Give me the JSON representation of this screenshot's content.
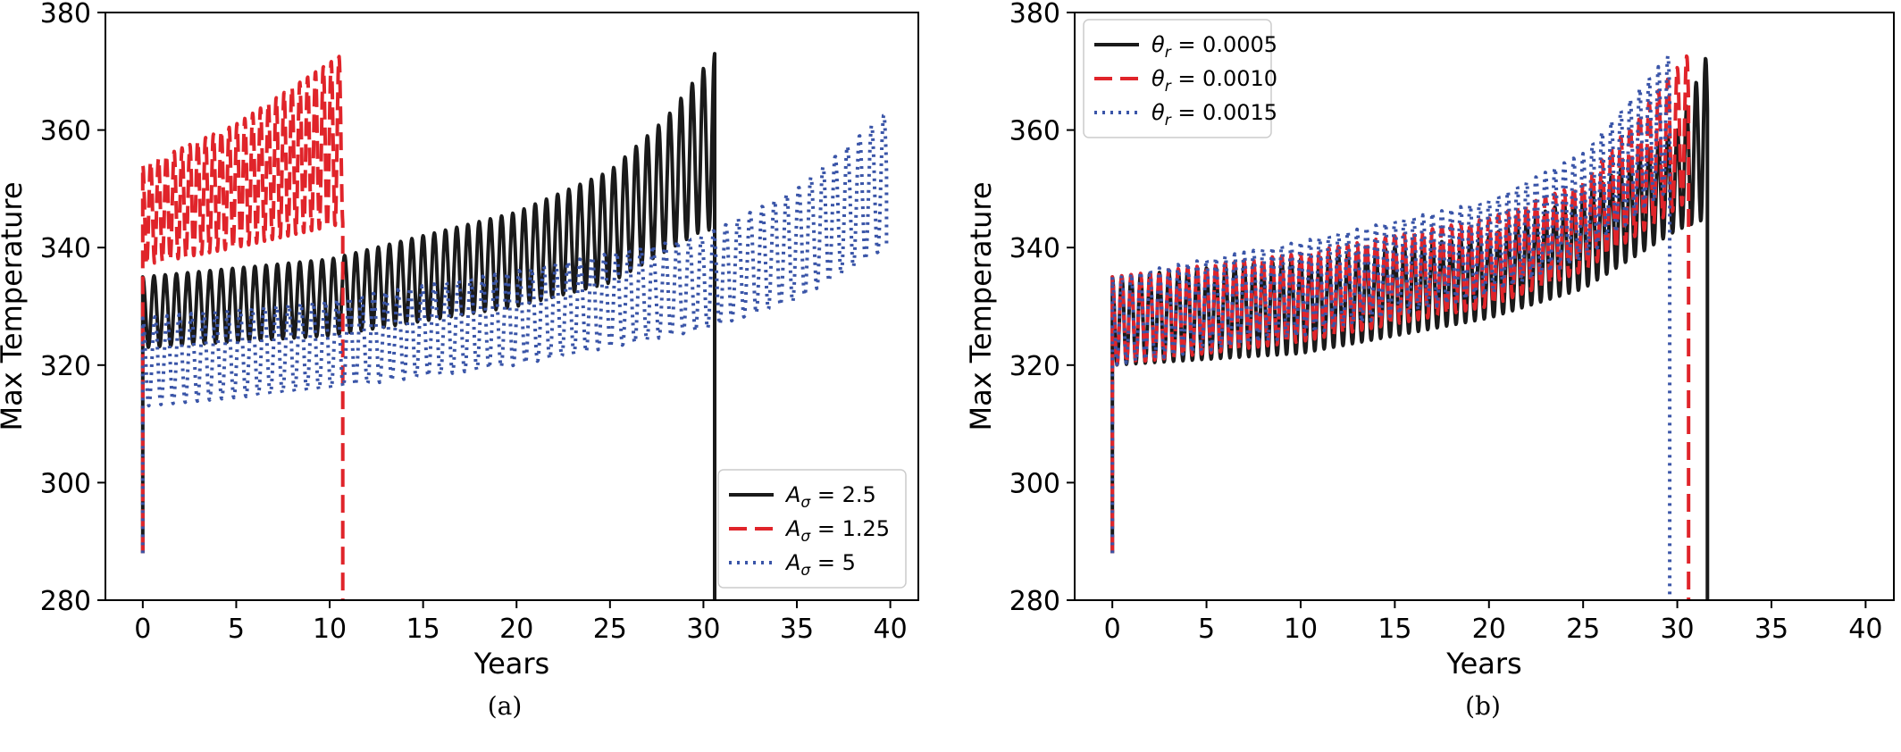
{
  "chart_data": [
    {
      "type": "line",
      "caption": "(a)",
      "xlabel": "Years",
      "ylabel": "Max Temperature",
      "xlim": [
        -2,
        41.5
      ],
      "ylim": [
        280,
        380
      ],
      "xticks": [
        "0",
        "5",
        "10",
        "15",
        "20",
        "25",
        "30",
        "35",
        "40"
      ],
      "yticks": [
        "280",
        "300",
        "320",
        "340",
        "360",
        "380"
      ],
      "legend_position": "lower-right",
      "series": [
        {
          "name": "A_σ = 2.5",
          "legend": {
            "base": "A",
            "sub": "σ",
            "rest": " = 2.5"
          },
          "color": "#1a1a1a",
          "style": "solid",
          "end_year": 30.6,
          "drop_to": 280,
          "period": 0.6,
          "lower": [
            [
              0,
              323
            ],
            [
              10,
              325
            ],
            [
              20,
              330
            ],
            [
              25,
              334
            ],
            [
              30,
              343
            ]
          ],
          "upper": [
            [
              0,
              335
            ],
            [
              10,
              338
            ],
            [
              15,
              342
            ],
            [
              20,
              346
            ],
            [
              25,
              353
            ],
            [
              28,
              362
            ],
            [
              30.6,
              373
            ]
          ]
        },
        {
          "name": "A_σ = 1.25",
          "legend": {
            "base": "A",
            "sub": "σ",
            "rest": " = 1.25"
          },
          "color": "#e0242a",
          "style": "dashed",
          "end_year": 10.7,
          "drop_to": 280,
          "period": 0.42,
          "lower": [
            [
              0,
              337
            ],
            [
              5,
              340
            ],
            [
              10.7,
              344
            ]
          ],
          "upper": [
            [
              0,
              354
            ],
            [
              5,
              361
            ],
            [
              10.7,
              373
            ]
          ]
        },
        {
          "name": "A_σ = 5",
          "legend": {
            "base": "A",
            "sub": "σ",
            "rest": " = 5"
          },
          "color": "#3a55a8",
          "style": "dotted",
          "end_year": 39.8,
          "drop_to": 340,
          "period": 0.65,
          "lower": [
            [
              0,
              313
            ],
            [
              10,
              316
            ],
            [
              20,
              320
            ],
            [
              30,
              326
            ],
            [
              35,
              331
            ],
            [
              39.8,
              340
            ]
          ],
          "upper": [
            [
              0,
              328
            ],
            [
              10,
              331
            ],
            [
              20,
              336
            ],
            [
              30,
              342
            ],
            [
              35,
              350
            ],
            [
              39.8,
              363
            ]
          ]
        }
      ]
    },
    {
      "type": "line",
      "caption": "(b)",
      "xlabel": "Years",
      "ylabel": "Max Temperature",
      "xlim": [
        -2,
        41.5
      ],
      "ylim": [
        280,
        380
      ],
      "xticks": [
        "0",
        "5",
        "10",
        "15",
        "20",
        "25",
        "30",
        "35",
        "40"
      ],
      "yticks": [
        "280",
        "300",
        "320",
        "340",
        "360",
        "380"
      ],
      "legend_position": "top-left",
      "series": [
        {
          "name": "θ_r = 0.0005",
          "legend": {
            "base": "θ",
            "sub": "r",
            "rest": " = 0.0005"
          },
          "color": "#1a1a1a",
          "style": "solid",
          "end_year": 31.6,
          "drop_to": 280,
          "period": 0.5,
          "lower": [
            [
              0,
              320
            ],
            [
              10,
              322
            ],
            [
              20,
              328
            ],
            [
              25,
              333
            ],
            [
              30,
              343
            ],
            [
              31.6,
              345
            ]
          ],
          "upper": [
            [
              0,
              335
            ],
            [
              10,
              338
            ],
            [
              20,
              342
            ],
            [
              25,
              349
            ],
            [
              30,
              360
            ],
            [
              31.6,
              373
            ]
          ]
        },
        {
          "name": "θ_r = 0.0010",
          "legend": {
            "base": "θ",
            "sub": "r",
            "rest": " = 0.0010"
          },
          "color": "#e0242a",
          "style": "dashed",
          "end_year": 30.6,
          "drop_to": 280,
          "period": 0.5,
          "lower": [
            [
              0,
              320
            ],
            [
              10,
              324
            ],
            [
              20,
              330
            ],
            [
              25,
              336
            ],
            [
              30.6,
              348
            ]
          ],
          "upper": [
            [
              0,
              335
            ],
            [
              10,
              339
            ],
            [
              20,
              345
            ],
            [
              25,
              351
            ],
            [
              30.6,
              373
            ]
          ]
        },
        {
          "name": "θ_r = 0.0015",
          "legend": {
            "base": "θ",
            "sub": "r",
            "rest": " = 0.0015"
          },
          "color": "#3a55a8",
          "style": "dotted",
          "end_year": 29.6,
          "drop_to": 280,
          "period": 0.5,
          "lower": [
            [
              0,
              320
            ],
            [
              10,
              325
            ],
            [
              20,
              332
            ],
            [
              25,
              338
            ],
            [
              29.6,
              350
            ]
          ],
          "upper": [
            [
              0,
              335
            ],
            [
              10,
              341
            ],
            [
              20,
              348
            ],
            [
              25,
              356
            ],
            [
              29.6,
              373
            ]
          ]
        }
      ]
    }
  ]
}
